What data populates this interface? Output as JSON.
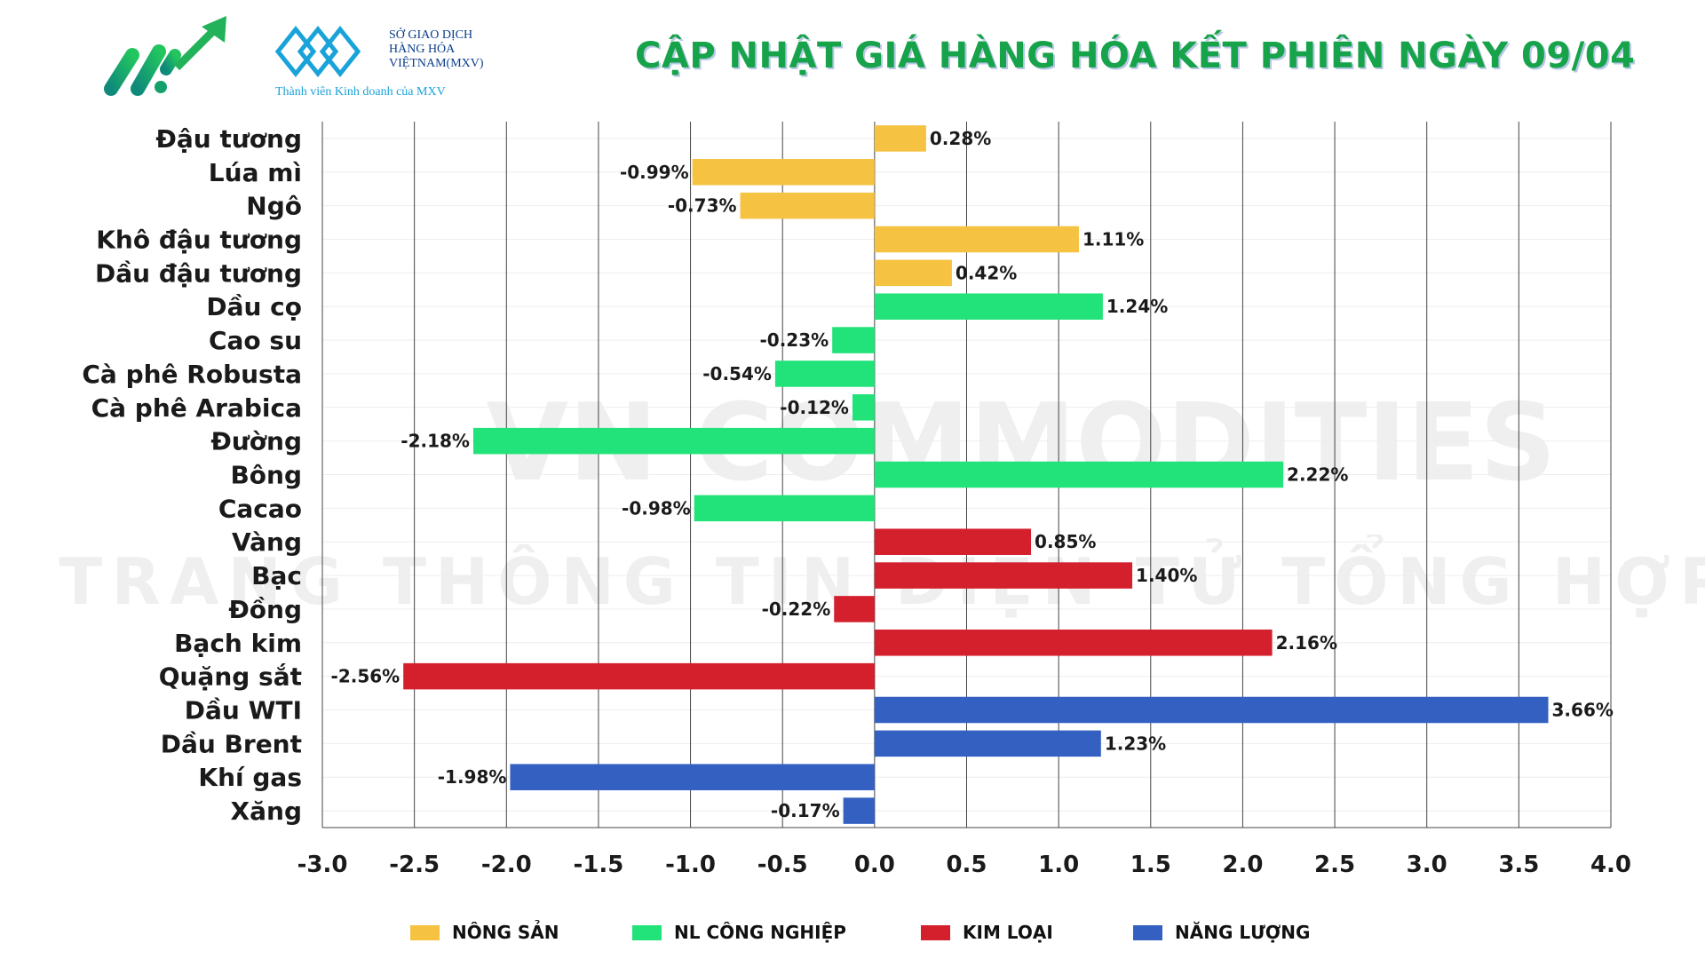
{
  "header": {
    "title": "CẬP NHẬT GIÁ HÀNG HÓA KẾT PHIÊN NGÀY 09/04",
    "mxv_logo_lines": [
      "SỞ GIAO DỊCH",
      "HÀNG HÓA",
      "VIỆTNAM(MXV)"
    ],
    "mxv_subtitle": "Thành viên Kinh doanh của MXV"
  },
  "watermark": {
    "line1": "VN COMMODITIES",
    "line2": "TRANG THÔNG TIN ĐIỆN TỬ TỔNG HỢP"
  },
  "chart_data": {
    "type": "bar",
    "orientation": "horizontal",
    "title": "CẬP NHẬT GIÁ HÀNG HÓA KẾT PHIÊN NGÀY 09/04",
    "xlim": [
      -3.0,
      4.0
    ],
    "xticks": [
      "-3.0",
      "-2.5",
      "-2.0",
      "-1.5",
      "-1.0",
      "-0.5",
      "0.0",
      "0.5",
      "1.0",
      "1.5",
      "2.0",
      "2.5",
      "3.0",
      "3.5",
      "4.0"
    ],
    "grid": "vertical",
    "legend_position": "bottom",
    "groups": [
      {
        "name": "NÔNG SẢN",
        "color": "#F5C242"
      },
      {
        "name": "NL CÔNG NGHIỆP",
        "color": "#22E27A"
      },
      {
        "name": "KIM LOẠI",
        "color": "#D41F2C"
      },
      {
        "name": "NĂNG LƯỢNG",
        "color": "#3461C1"
      }
    ],
    "items": [
      {
        "label": "Đậu tương",
        "value": 0.28,
        "text": "0.28%",
        "group": 0
      },
      {
        "label": "Lúa mì",
        "value": -0.99,
        "text": "-0.99%",
        "group": 0
      },
      {
        "label": "Ngô",
        "value": -0.73,
        "text": "-0.73%",
        "group": 0
      },
      {
        "label": "Khô đậu tương",
        "value": 1.11,
        "text": "1.11%",
        "group": 0
      },
      {
        "label": "Dầu đậu tương",
        "value": 0.42,
        "text": "0.42%",
        "group": 0
      },
      {
        "label": "Dầu cọ",
        "value": 1.24,
        "text": "1.24%",
        "group": 1
      },
      {
        "label": "Cao su",
        "value": -0.23,
        "text": "-0.23%",
        "group": 1
      },
      {
        "label": "Cà phê Robusta",
        "value": -0.54,
        "text": "-0.54%",
        "group": 1
      },
      {
        "label": "Cà phê Arabica",
        "value": -0.12,
        "text": "-0.12%",
        "group": 1
      },
      {
        "label": "Đường",
        "value": -2.18,
        "text": "-2.18%",
        "group": 1
      },
      {
        "label": "Bông",
        "value": 2.22,
        "text": "2.22%",
        "group": 1
      },
      {
        "label": "Cacao",
        "value": -0.98,
        "text": "-0.98%",
        "group": 1
      },
      {
        "label": "Vàng",
        "value": 0.85,
        "text": "0.85%",
        "group": 2
      },
      {
        "label": "Bạc",
        "value": 1.4,
        "text": "1.40%",
        "group": 2
      },
      {
        "label": "Đồng",
        "value": -0.22,
        "text": "-0.22%",
        "group": 2
      },
      {
        "label": "Bạch kim",
        "value": 2.16,
        "text": "2.16%",
        "group": 2
      },
      {
        "label": "Quặng sắt",
        "value": -2.56,
        "text": "-2.56%",
        "group": 2
      },
      {
        "label": "Dầu WTI",
        "value": 3.66,
        "text": "3.66%",
        "group": 3
      },
      {
        "label": "Dầu Brent",
        "value": 1.23,
        "text": "1.23%",
        "group": 3
      },
      {
        "label": "Khí gas",
        "value": -1.98,
        "text": "-1.98%",
        "group": 3
      },
      {
        "label": "Xăng",
        "value": -0.17,
        "text": "-0.17%",
        "group": 3
      }
    ]
  }
}
